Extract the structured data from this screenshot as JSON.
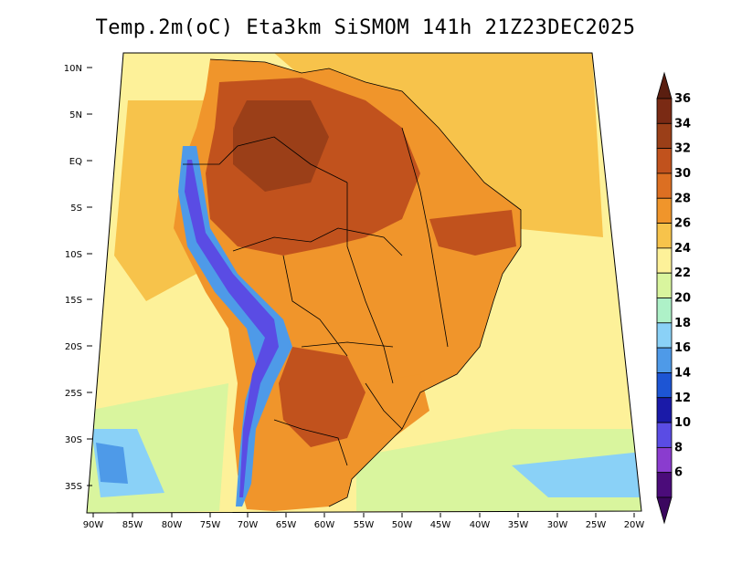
{
  "title": "Temp.2m(oC) Eta3km SiSMOM 141h 21Z23DEC2025",
  "map": {
    "variable": "2 m temperature (oC)",
    "lat_labels": [
      "10N",
      "5N",
      "EQ",
      "5S",
      "10S",
      "15S",
      "20S",
      "25S",
      "30S",
      "35S"
    ],
    "lon_labels": [
      "90W",
      "85W",
      "80W",
      "75W",
      "70W",
      "65W",
      "60W",
      "55W",
      "50W",
      "45W",
      "40W",
      "35W",
      "30W",
      "25W",
      "20W"
    ]
  },
  "colorbar": {
    "levels": [
      "36",
      "34",
      "32",
      "30",
      "28",
      "26",
      "24",
      "22",
      "20",
      "18",
      "16",
      "14",
      "12",
      "10",
      "8",
      "6"
    ],
    "colors": [
      "#7a2a14",
      "#9b3f18",
      "#c1521d",
      "#dc6f22",
      "#f0952b",
      "#f7c34b",
      "#fdf199",
      "#d9f59e",
      "#aef1c8",
      "#8ad1f7",
      "#4e9ae8",
      "#1d55d4",
      "#1a1aa8",
      "#5a4ce4",
      "#8a3ccf",
      "#4b0c7a"
    ],
    "extend_top_color": "#5a1e10",
    "extend_bottom_color": "#3b075f"
  },
  "regions": {
    "ocean_warm": "#f7c34b",
    "ocean_mild": "#fdf199",
    "ocean_cool": "#d9f59e",
    "land_hot": "#c1521d",
    "land_very_hot": "#9b3f18",
    "land_warm": "#f0952b",
    "andes_cold": "#4e9ae8",
    "andes_very_cold": "#5a4ce4"
  }
}
